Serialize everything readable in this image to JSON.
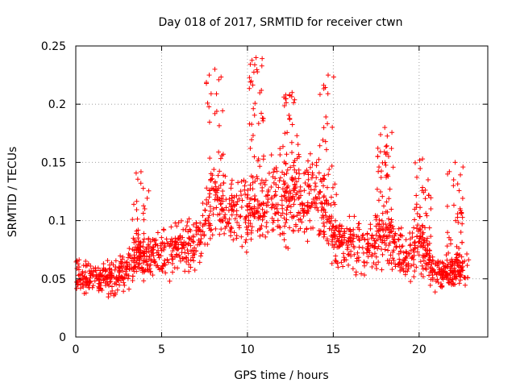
{
  "chart_data": {
    "type": "scatter",
    "title": "Day 018 of 2017, SRMTID for receiver ctwn",
    "xlabel": "GPS time / hours",
    "ylabel": "SRMTID / TECUs",
    "xlim": [
      0,
      24
    ],
    "ylim": [
      0,
      0.25
    ],
    "xticks": [
      0,
      5,
      10,
      15,
      20
    ],
    "xtick_labels": [
      "0",
      "5",
      "10",
      "15",
      "20"
    ],
    "yticks": [
      0,
      0.05,
      0.1,
      0.15,
      0.2,
      0.25
    ],
    "ytick_labels": [
      "0",
      "0.05",
      "0.1",
      "0.15",
      "0.2",
      "0.25"
    ],
    "grid": true,
    "marker": "+",
    "color": "#ff0000",
    "series": [
      {
        "name": "SRMTID",
        "x_range": [
          0.0,
          22.9
        ],
        "trend_x": [
          0,
          1,
          2,
          3,
          4,
          5,
          6,
          7,
          8,
          9,
          10,
          11,
          12,
          13,
          14,
          15,
          16,
          17,
          18,
          19,
          20,
          21,
          22,
          22.9
        ],
        "trend_y": [
          0.055,
          0.05,
          0.05,
          0.058,
          0.07,
          0.07,
          0.075,
          0.082,
          0.11,
          0.108,
          0.105,
          0.115,
          0.12,
          0.118,
          0.12,
          0.085,
          0.08,
          0.075,
          0.09,
          0.07,
          0.08,
          0.055,
          0.055,
          0.06
        ],
        "peaks": [
          {
            "x": 8.1,
            "y": 0.23
          },
          {
            "x": 10.5,
            "y": 0.24
          },
          {
            "x": 12.6,
            "y": 0.21
          },
          {
            "x": 14.7,
            "y": 0.225
          },
          {
            "x": 18.0,
            "y": 0.18
          },
          {
            "x": 20.2,
            "y": 0.153
          },
          {
            "x": 3.8,
            "y": 0.142
          },
          {
            "x": 22.1,
            "y": 0.15
          }
        ]
      }
    ]
  }
}
